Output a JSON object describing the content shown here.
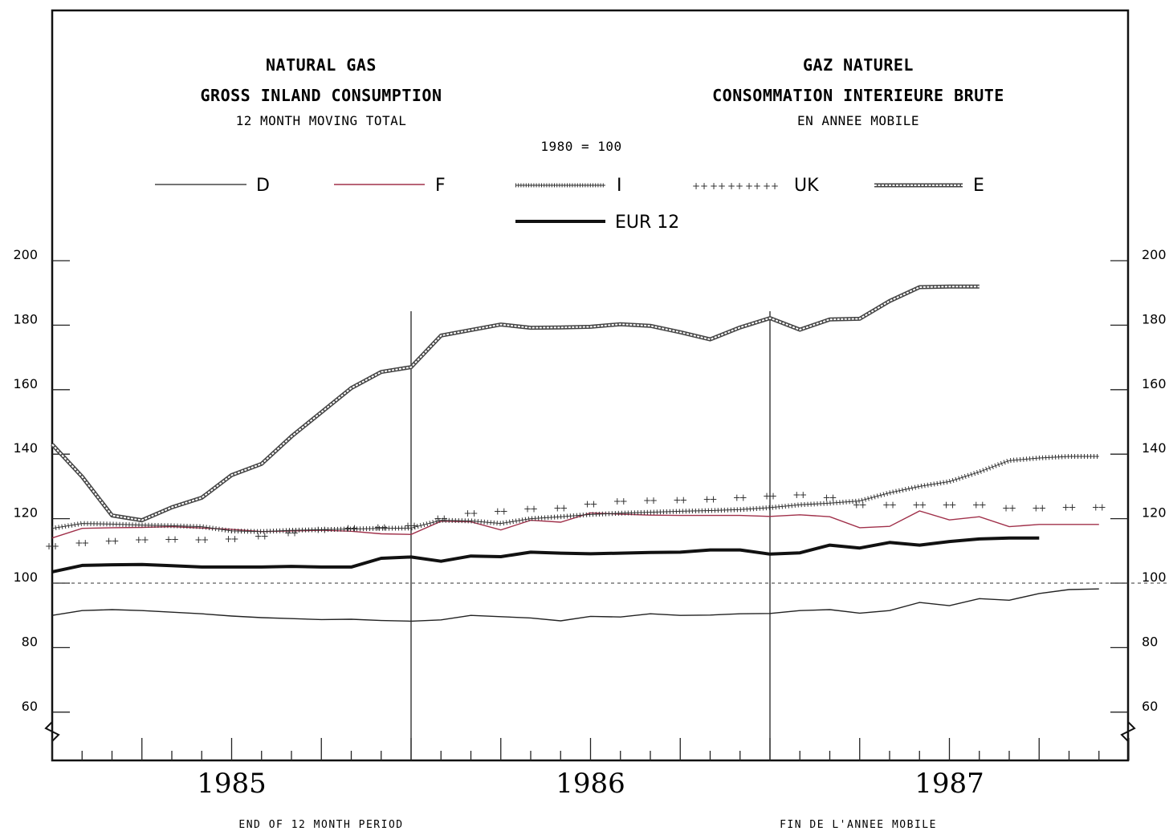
{
  "chart_data": {
    "type": "line",
    "titles": {
      "en_title": "NATURAL GAS",
      "en_subtitle": "GROSS INLAND CONSUMPTION",
      "en_note": "12 MONTH MOVING TOTAL",
      "fr_title": "GAZ NATUREL",
      "fr_subtitle": "CONSOMMATION INTERIEURE BRUTE",
      "fr_note": "EN ANNEE MOBILE",
      "base": "1980 = 100"
    },
    "footer": {
      "left": "END OF 12 MONTH PERIOD",
      "right": "FIN DE L'ANNEE MOBILE"
    },
    "x_axis": {
      "unit": "month",
      "start": "1984-07",
      "end": "1987-07",
      "year_labels": [
        "1985",
        "1986",
        "1987"
      ],
      "year_label_months": [
        6,
        18,
        30
      ],
      "vertical_markers": [
        12,
        24
      ]
    },
    "y_axis": {
      "ylim": [
        45,
        200
      ],
      "ticks": [
        60,
        80,
        100,
        120,
        140,
        160,
        180,
        200
      ],
      "tick_labels": [
        "60",
        "80",
        "100",
        "120",
        "140",
        "160",
        "180",
        "200"
      ],
      "reference_line": 100
    },
    "legend": {
      "placement": "top",
      "entries": [
        "D",
        "F",
        "I",
        "UK",
        "E",
        "EUR 12"
      ]
    },
    "series": [
      {
        "name": "D",
        "style": "thin",
        "color": "#222222",
        "values": [
          90,
          91.5,
          91.8,
          91.5,
          91,
          90.5,
          89.8,
          89.3,
          89,
          88.7,
          88.8,
          88.4,
          88.2,
          88.6,
          90,
          89.6,
          89.2,
          88.3,
          89.7,
          89.5,
          90.5,
          90,
          90.1,
          90.5,
          90.6,
          91.5,
          91.8,
          90.7,
          91.5,
          94,
          93,
          95.2,
          94.7,
          96.8,
          98,
          98.2
        ]
      },
      {
        "name": "F",
        "style": "thin",
        "color": "#a0304a",
        "values": [
          114,
          117,
          117.2,
          117.3,
          117.5,
          117.1,
          116.7,
          116,
          116.2,
          116.4,
          116.1,
          115.3,
          115.1,
          119.2,
          119,
          116.5,
          119.5,
          118.9,
          121.8,
          121.4,
          121.1,
          121,
          121,
          121,
          120.7,
          121.2,
          120.6,
          117.2,
          117.6,
          122.4,
          119.6,
          120.6,
          117.5,
          118.2,
          118.2,
          118.2
        ]
      },
      {
        "name": "I",
        "style": "plus-dense",
        "color": "#333333",
        "values": [
          117,
          118.5,
          118.3,
          118,
          117.8,
          117.5,
          116.2,
          116,
          116.4,
          116.6,
          116.8,
          117,
          117.1,
          119.5,
          119.3,
          118.5,
          120,
          120.6,
          121.3,
          121.7,
          122,
          122.3,
          122.5,
          122.8,
          123.4,
          124.3,
          124.8,
          125.5,
          128,
          130,
          131.5,
          134.5,
          138,
          138.8,
          139.3,
          139.3
        ]
      },
      {
        "name": "UK",
        "style": "plus-sparse",
        "color": "#333333",
        "values": [
          111.5,
          112.5,
          113,
          113.4,
          113.6,
          113.4,
          113.7,
          114.5,
          115.5,
          116.5,
          117.1,
          117.3,
          117.8,
          120,
          121.7,
          122.3,
          123,
          123.3,
          124.5,
          125.4,
          125.6,
          125.7,
          126,
          126.5,
          127,
          127.4,
          126.5,
          124.3,
          124.3,
          124.3,
          124.2,
          124.3,
          123.2,
          123.2,
          123.5,
          123.5
        ]
      },
      {
        "name": "E",
        "style": "double",
        "color": "#555555",
        "values": [
          143,
          133,
          121,
          119.5,
          123.5,
          126.5,
          133.5,
          137,
          145.5,
          153,
          160.5,
          165.5,
          167,
          176.8,
          178.5,
          180.2,
          179.2,
          179.3,
          179.5,
          180.3,
          179.8,
          177.8,
          175.6,
          179.3,
          182.2,
          178.6,
          181.8,
          182,
          187.5,
          191.8,
          192,
          192
        ]
      },
      {
        "name": "EUR 12",
        "style": "thick",
        "color": "#111111",
        "values": [
          103.5,
          105.5,
          105.7,
          105.8,
          105.4,
          105,
          105,
          105,
          105.2,
          105,
          105,
          107.7,
          108.1,
          106.8,
          108.4,
          108.2,
          109.6,
          109.3,
          109.1,
          109.3,
          109.5,
          109.6,
          110.3,
          110.3,
          109,
          109.4,
          111.8,
          110.9,
          112.6,
          111.8,
          112.9,
          113.7,
          114,
          114
        ]
      }
    ]
  }
}
